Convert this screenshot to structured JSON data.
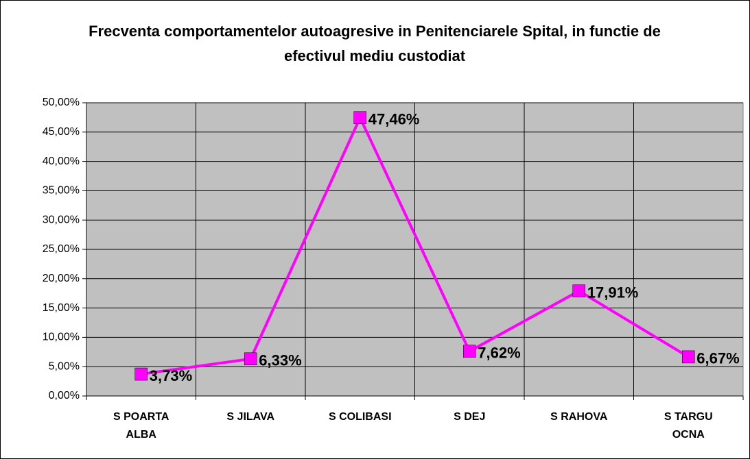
{
  "chart_data": {
    "type": "line",
    "title": "Frecventa comportamentelor autoagresive in Penitenciarele Spital, in functie de efectivul mediu custodiat",
    "categories": [
      "S POARTA ALBA",
      "S JILAVA",
      "S COLIBASI",
      "S DEJ",
      "S RAHOVA",
      "S TARGU OCNA"
    ],
    "series": [
      {
        "color": "#ff00ff",
        "values": [
          3.73,
          6.33,
          47.46,
          7.62,
          17.91,
          6.67
        ],
        "value_labels": [
          "3,73%",
          "6,33%",
          "47,46%",
          "7,62%",
          "17,91%",
          "6,67%"
        ]
      }
    ],
    "ylim": [
      0,
      50
    ],
    "yticks": [
      {
        "value": 0,
        "label": "0,00%"
      },
      {
        "value": 5,
        "label": "5,00%"
      },
      {
        "value": 10,
        "label": "10,00%"
      },
      {
        "value": 15,
        "label": "15,00%"
      },
      {
        "value": 20,
        "label": "20,00%"
      },
      {
        "value": 25,
        "label": "25,00%"
      },
      {
        "value": 30,
        "label": "30,00%"
      },
      {
        "value": 35,
        "label": "35,00%"
      },
      {
        "value": 40,
        "label": "40,00%"
      },
      {
        "value": 45,
        "label": "45,00%"
      },
      {
        "value": 50,
        "label": "50,00%"
      }
    ],
    "grid": true,
    "plot_background": "#c0c0c0"
  }
}
